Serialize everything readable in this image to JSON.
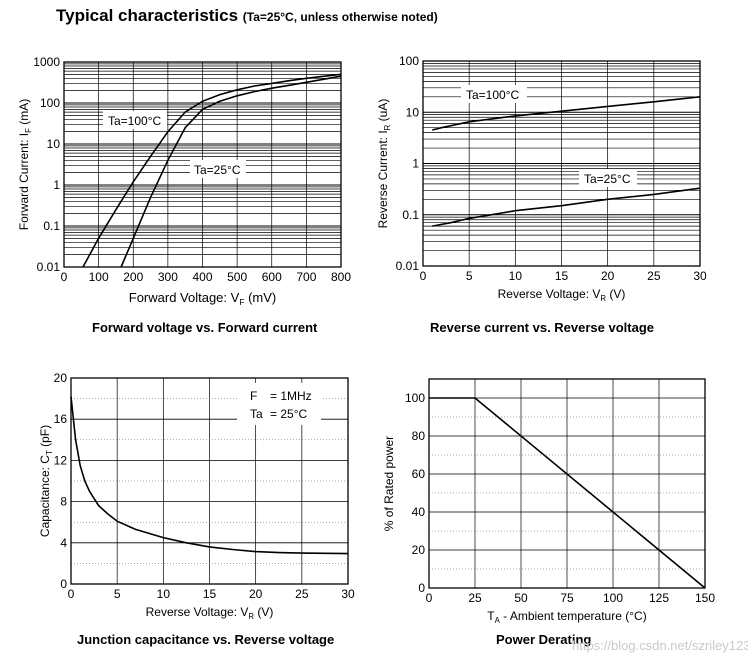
{
  "page": {
    "title": "Typical characteristics",
    "title_note": "(Ta=25°C, unless otherwise noted)",
    "watermark": "https://blog.csdn.net/szriley123"
  },
  "chart_data": [
    {
      "type": "line",
      "caption": "Forward voltage vs. Forward current",
      "xlabel": "Forward Voltage: V",
      "xlabel_sub": "F",
      "xlabel_unit": " (mV)",
      "ylabel": "Forward Current: I",
      "ylabel_sub": "F",
      "ylabel_unit": " (mA)",
      "x_scale": "linear",
      "y_scale": "log",
      "xlim": [
        0,
        800
      ],
      "ylim": [
        0.01,
        1000
      ],
      "x_ticks": [
        0,
        100,
        200,
        300,
        400,
        500,
        600,
        700,
        800
      ],
      "y_ticks": [
        0.01,
        0.1,
        1,
        10,
        100,
        1000
      ],
      "y_tick_labels": [
        "0.01",
        "0.1",
        "1",
        "10",
        "100",
        "1000"
      ],
      "grid": true,
      "series": [
        {
          "name": "Ta=100°C",
          "points": [
            [
              55,
              0.01
            ],
            [
              100,
              0.05
            ],
            [
              150,
              0.25
            ],
            [
              200,
              1.2
            ],
            [
              250,
              5
            ],
            [
              300,
              20
            ],
            [
              350,
              60
            ],
            [
              400,
              110
            ],
            [
              450,
              160
            ],
            [
              500,
              210
            ],
            [
              550,
              260
            ],
            [
              600,
              300
            ],
            [
              650,
              350
            ],
            [
              700,
              400
            ],
            [
              800,
              500
            ]
          ]
        },
        {
          "name": "Ta=25°C",
          "points": [
            [
              165,
              0.01
            ],
            [
              200,
              0.05
            ],
            [
              250,
              0.5
            ],
            [
              300,
              4
            ],
            [
              350,
              25
            ],
            [
              400,
              70
            ],
            [
              450,
              110
            ],
            [
              500,
              150
            ],
            [
              550,
              190
            ],
            [
              600,
              230
            ],
            [
              650,
              270
            ],
            [
              700,
              320
            ],
            [
              800,
              450
            ]
          ]
        }
      ],
      "labels": [
        "Ta=100°C",
        "Ta=25°C"
      ]
    },
    {
      "type": "line",
      "caption": "Reverse current vs. Reverse voltage",
      "xlabel": "Reverse Voltage: V",
      "xlabel_sub": "R",
      "xlabel_unit": " (V)",
      "ylabel": "Reverse Current: I",
      "ylabel_sub": "R",
      "ylabel_unit": " (uA)",
      "x_scale": "linear",
      "y_scale": "log",
      "xlim": [
        0,
        30
      ],
      "ylim": [
        0.01,
        100
      ],
      "x_ticks": [
        0,
        5,
        10,
        15,
        20,
        25,
        30
      ],
      "y_ticks": [
        0.01,
        0.1,
        1,
        10,
        100
      ],
      "y_tick_labels": [
        "0.01",
        "0.1",
        "1",
        "10",
        "100"
      ],
      "grid": true,
      "series": [
        {
          "name": "Ta=100°C",
          "points": [
            [
              1,
              4.5
            ],
            [
              2,
              5
            ],
            [
              5,
              6.5
            ],
            [
              10,
              8.5
            ],
            [
              15,
              10.5
            ],
            [
              20,
              13
            ],
            [
              25,
              16
            ],
            [
              30,
              20
            ]
          ]
        },
        {
          "name": "Ta=25°C",
          "points": [
            [
              1,
              0.06
            ],
            [
              3,
              0.07
            ],
            [
              5,
              0.085
            ],
            [
              10,
              0.12
            ],
            [
              15,
              0.15
            ],
            [
              20,
              0.2
            ],
            [
              25,
              0.25
            ],
            [
              30,
              0.33
            ]
          ]
        }
      ],
      "labels": [
        "Ta=100°C",
        "Ta=25°C"
      ]
    },
    {
      "type": "line",
      "caption": "Junction capacitance vs. Reverse voltage",
      "xlabel": "Reverse Voltage: V",
      "xlabel_sub": "R",
      "xlabel_unit": " (V)",
      "ylabel": "Capacitance: C",
      "ylabel_sub": "T",
      "ylabel_unit": " (pF)",
      "x_scale": "linear",
      "y_scale": "linear",
      "xlim": [
        0,
        30
      ],
      "ylim": [
        0,
        20
      ],
      "x_ticks": [
        0,
        5,
        10,
        15,
        20,
        25,
        30
      ],
      "y_ticks": [
        0,
        4,
        8,
        12,
        16,
        20
      ],
      "grid": true,
      "series": [
        {
          "name": "",
          "points": [
            [
              0,
              18.2
            ],
            [
              0.5,
              14
            ],
            [
              1,
              11.5
            ],
            [
              1.5,
              10
            ],
            [
              2,
              9
            ],
            [
              3,
              7.6
            ],
            [
              4,
              6.8
            ],
            [
              5,
              6.1
            ],
            [
              7,
              5.3
            ],
            [
              10,
              4.5
            ],
            [
              12.5,
              4.0
            ],
            [
              15,
              3.6
            ],
            [
              17.5,
              3.35
            ],
            [
              20,
              3.15
            ],
            [
              22.5,
              3.05
            ],
            [
              25,
              3.0
            ],
            [
              30,
              2.95
            ]
          ]
        }
      ],
      "legend": [
        {
          "key": "F",
          "value": "= 1MHz"
        },
        {
          "key": "Ta",
          "value": "= 25°C"
        }
      ]
    },
    {
      "type": "line",
      "caption": "Power Derating",
      "xlabel": "T",
      "xlabel_sub": "A",
      "xlabel_unit": " - Ambient temperature (°C)",
      "ylabel": "% of Rated power",
      "ylabel_sub": "",
      "ylabel_unit": "",
      "x_scale": "linear",
      "y_scale": "linear",
      "xlim": [
        0,
        150
      ],
      "ylim": [
        0,
        110
      ],
      "x_ticks": [
        0,
        25,
        50,
        75,
        100,
        125,
        150
      ],
      "y_ticks": [
        0,
        20,
        40,
        60,
        80,
        100
      ],
      "grid": true,
      "series": [
        {
          "name": "",
          "points": [
            [
              0,
              100
            ],
            [
              25,
              100
            ],
            [
              150,
              0
            ]
          ]
        }
      ]
    }
  ]
}
